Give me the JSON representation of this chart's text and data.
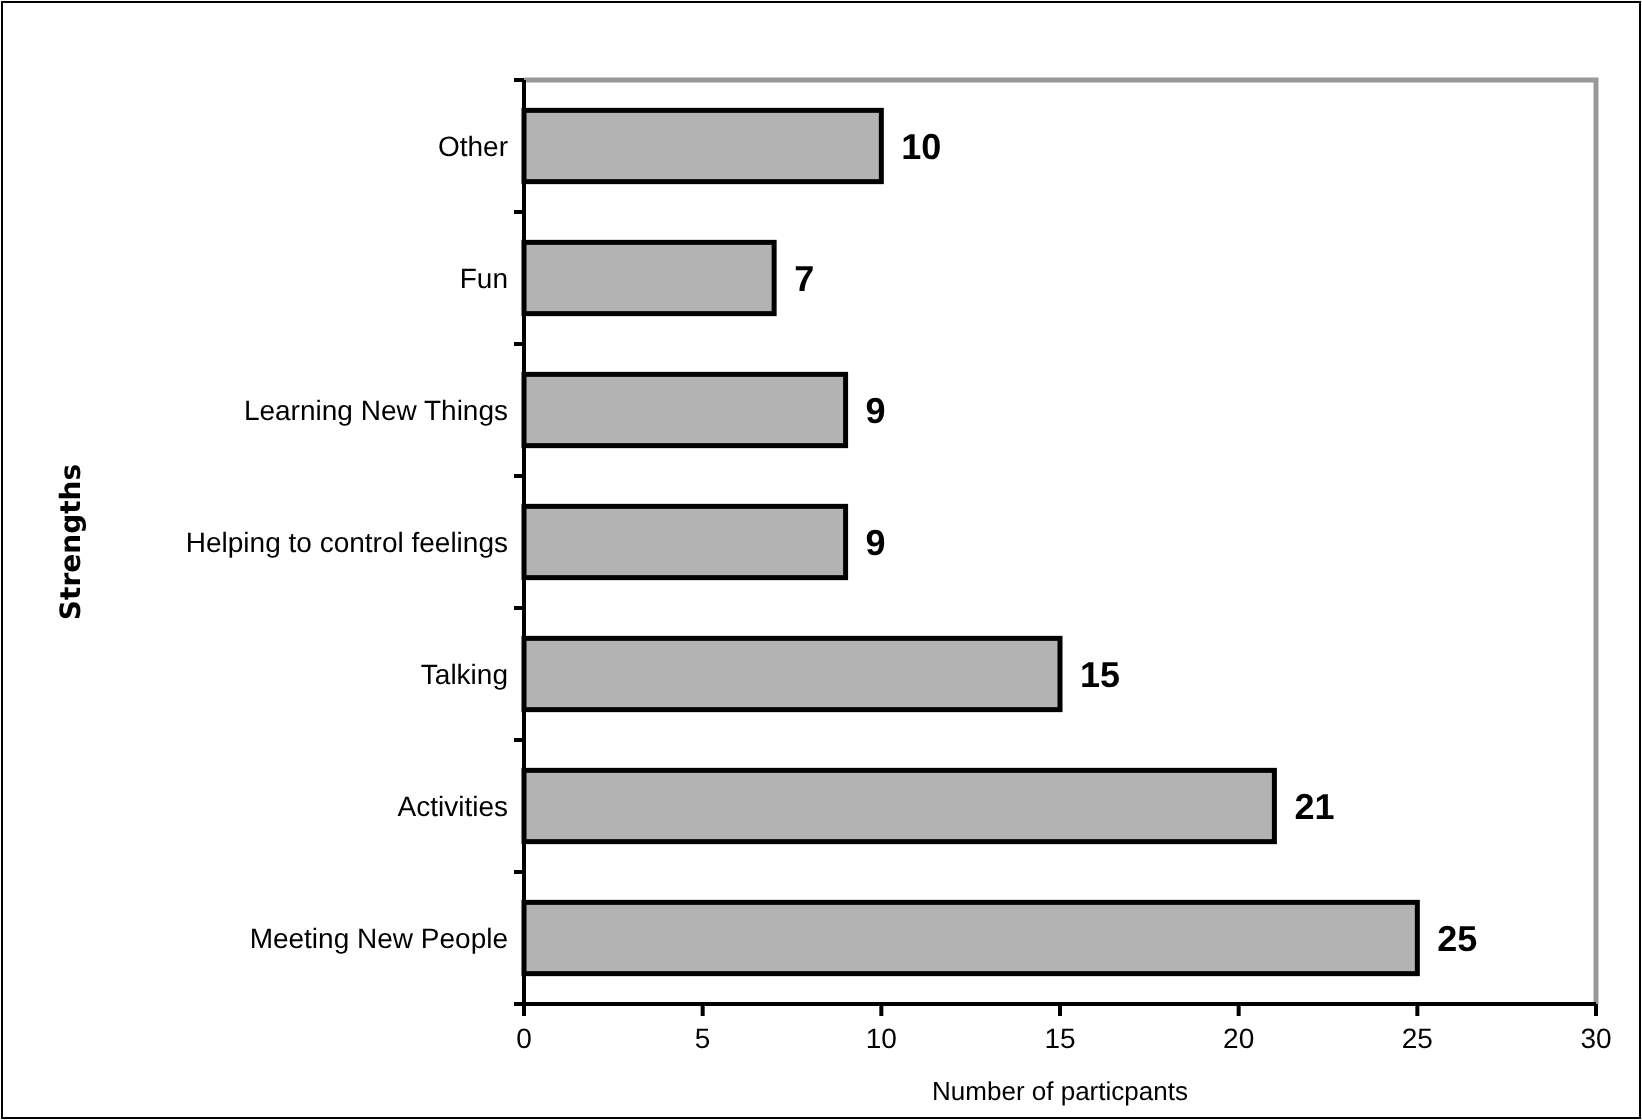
{
  "chart_data": {
    "type": "bar",
    "orientation": "horizontal",
    "xlabel": "Number of particpants",
    "ylabel": "Strengths",
    "categories": [
      "Other",
      "Fun",
      "Learning New Things",
      "Helping to control feelings",
      "Talking",
      "Activities",
      "Meeting New People"
    ],
    "values": [
      10,
      7,
      9,
      9,
      15,
      21,
      25
    ],
    "color": "#b3b3b3",
    "xlim": [
      0,
      30
    ],
    "xticks": [
      0,
      5,
      10,
      15,
      20,
      25,
      30
    ],
    "data_labels": true
  }
}
